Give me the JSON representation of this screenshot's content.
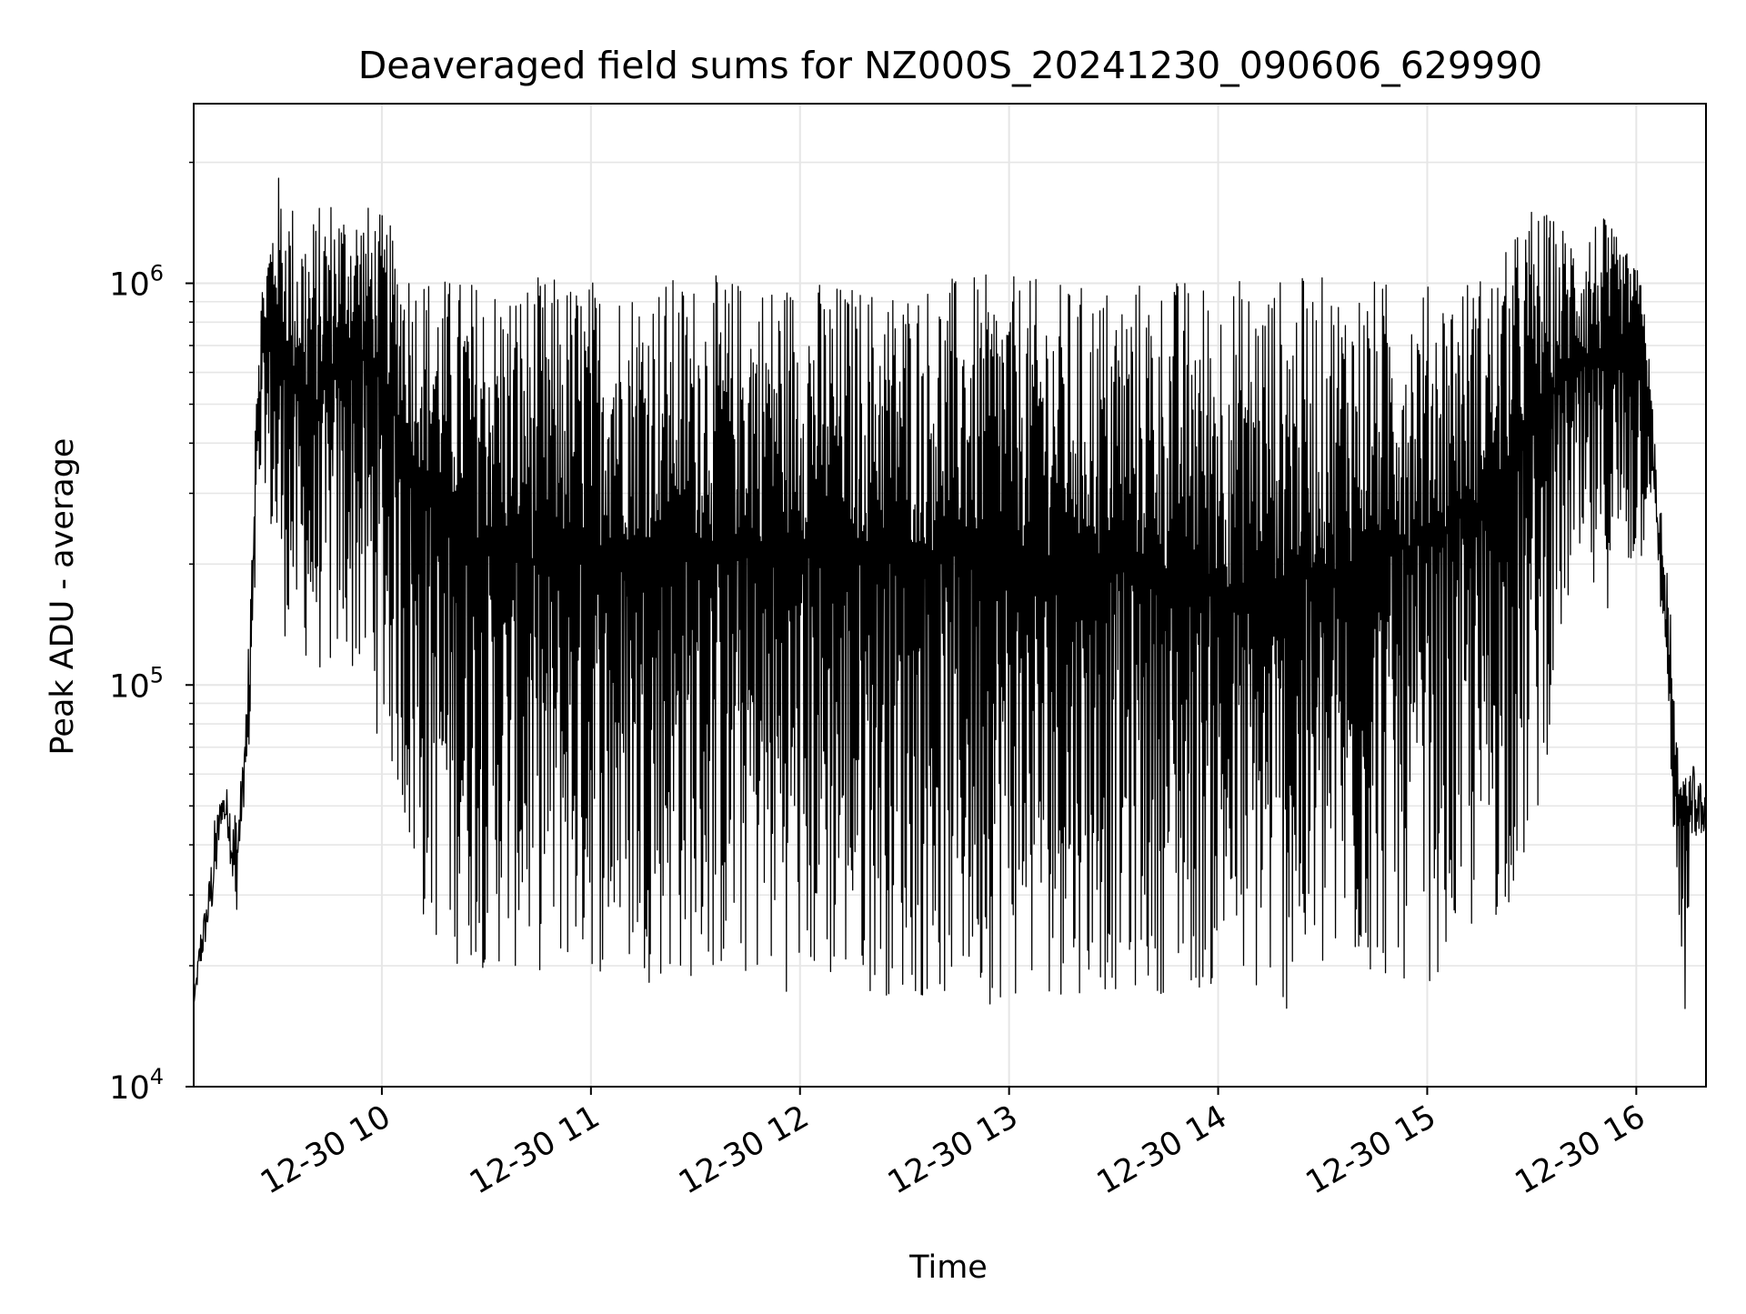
{
  "chart_data": {
    "type": "line",
    "title": "Deaveraged field sums for NZ000S_20241230_090606_629990",
    "xlabel": "Time",
    "ylabel": "Peak ADU - average",
    "yscale": "log",
    "xlim": [
      "2024-12-30 09:06",
      "2024-12-30 16:20"
    ],
    "ylim": [
      10000,
      2800000
    ],
    "x_ticks": [
      {
        "label": "12-30 10",
        "value": "2024-12-30 10:00"
      },
      {
        "label": "12-30 11",
        "value": "2024-12-30 11:00"
      },
      {
        "label": "12-30 12",
        "value": "2024-12-30 12:00"
      },
      {
        "label": "12-30 13",
        "value": "2024-12-30 13:00"
      },
      {
        "label": "12-30 14",
        "value": "2024-12-30 14:00"
      },
      {
        "label": "12-30 15",
        "value": "2024-12-30 15:00"
      },
      {
        "label": "12-30 16",
        "value": "2024-12-30 16:00"
      }
    ],
    "y_ticks": [
      {
        "base": "10",
        "exp": "4",
        "value": 10000
      },
      {
        "base": "10",
        "exp": "5",
        "value": 100000
      },
      {
        "base": "10",
        "exp": "6",
        "value": 1000000
      }
    ],
    "grid": true,
    "line_color": "#000000",
    "grid_color": "#e6e6e6",
    "series": [
      {
        "x": [
          "2024-12-30 09:06",
          "2024-12-30 09:08",
          "2024-12-30 09:10",
          "2024-12-30 09:12",
          "2024-12-30 09:14",
          "2024-12-30 09:16",
          "2024-12-30 09:18",
          "2024-12-30 09:20",
          "2024-12-30 09:22",
          "2024-12-30 09:24",
          "2024-12-30 09:26",
          "2024-12-30 09:30",
          "2024-12-30 09:35",
          "2024-12-30 09:40",
          "2024-12-30 09:45",
          "2024-12-30 09:50",
          "2024-12-30 09:55",
          "2024-12-30 10:00",
          "2024-12-30 10:05",
          "2024-12-30 10:10",
          "2024-12-30 10:20",
          "2024-12-30 10:40",
          "2024-12-30 11:00",
          "2024-12-30 11:20",
          "2024-12-30 11:40",
          "2024-12-30 12:00",
          "2024-12-30 12:20",
          "2024-12-30 12:40",
          "2024-12-30 13:00",
          "2024-12-30 13:20",
          "2024-12-30 13:40",
          "2024-12-30 14:00",
          "2024-12-30 14:20",
          "2024-12-30 14:40",
          "2024-12-30 15:00",
          "2024-12-30 15:20",
          "2024-12-30 15:30",
          "2024-12-30 15:40",
          "2024-12-30 15:50",
          "2024-12-30 16:00",
          "2024-12-30 16:02",
          "2024-12-30 16:04",
          "2024-12-30 16:06",
          "2024-12-30 16:08",
          "2024-12-30 16:10",
          "2024-12-30 16:12",
          "2024-12-30 16:14",
          "2024-12-30 16:16",
          "2024-12-30 16:18",
          "2024-12-30 16:20"
        ],
        "y": [
          16000,
          22000,
          27000,
          36000,
          50000,
          48000,
          33000,
          55000,
          90000,
          400000,
          700000,
          800000,
          550000,
          450000,
          600000,
          700000,
          650000,
          600000,
          450000,
          350000,
          250000,
          200000,
          220000,
          230000,
          220000,
          230000,
          220000,
          210000,
          220000,
          200000,
          190000,
          170000,
          180000,
          200000,
          230000,
          300000,
          450000,
          600000,
          650000,
          800000,
          750000,
          450000,
          250000,
          160000,
          90000,
          50000,
          45000,
          52000,
          48000,
          50000
        ],
        "upper": [
          16000,
          25000,
          30000,
          45000,
          52000,
          52000,
          50000,
          60000,
          140000,
          800000,
          1100000,
          1900000,
          1600000,
          1500000,
          1700000,
          1600000,
          1600000,
          1500000,
          1300000,
          1100000,
          1050000,
          1050000,
          1050000,
          1050000,
          1050000,
          1050000,
          1000000,
          1050000,
          1050000,
          1000000,
          1050000,
          1050000,
          1050000,
          1050000,
          1000000,
          1100000,
          1600000,
          1400000,
          1500000,
          1100000,
          1000000,
          600000,
          350000,
          250000,
          150000,
          65000,
          60000,
          60000,
          58000,
          55000
        ],
        "lower": [
          16000,
          19000,
          24000,
          27000,
          44000,
          38000,
          27000,
          45000,
          60000,
          200000,
          360000,
          140000,
          120000,
          110000,
          100000,
          110000,
          90000,
          70000,
          50000,
          25000,
          20000,
          19000,
          19000,
          18000,
          18000,
          17000,
          17000,
          16000,
          16000,
          17000,
          17000,
          17000,
          15000,
          18000,
          18000,
          25000,
          35000,
          150000,
          150000,
          180000,
          200000,
          300000,
          200000,
          120000,
          60000,
          20000,
          15000,
          38000,
          40000,
          42000
        ]
      }
    ]
  }
}
